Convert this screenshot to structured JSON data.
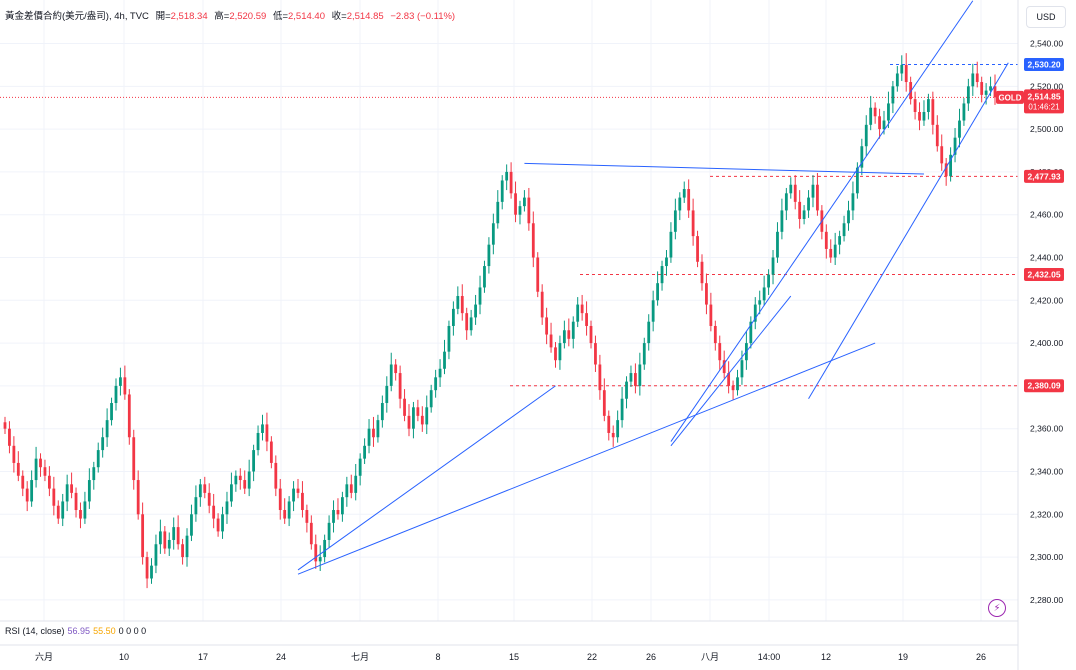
{
  "header": {
    "title": "黃金差價合約(美元/盎司), 4h, TVC",
    "open_label": "開=",
    "open": "2,518.34",
    "high_label": "高=",
    "high": "2,520.59",
    "low_label": "低=",
    "low": "2,514.40",
    "close_label": "收=",
    "close": "2,514.85",
    "change": "−2.83 (−0.11%)"
  },
  "currency_button": "USD",
  "price_axis": {
    "ticks": [
      "2,540.00",
      "2,520.00",
      "2,500.00",
      "2,480.00",
      "2,460.00",
      "2,440.00",
      "2,420.00",
      "2,400.00",
      "2,380.00",
      "2,360.00",
      "2,340.00",
      "2,320.00",
      "2,300.00",
      "2,280.00"
    ]
  },
  "price_labels": [
    {
      "value": "2,530.20",
      "color": "#2962ff"
    },
    {
      "value": "2,477.93",
      "color": "#f23645"
    },
    {
      "value": "2,432.05",
      "color": "#f23645"
    },
    {
      "value": "2,380.09",
      "color": "#f23645"
    }
  ],
  "last_price": {
    "symbol": "GOLD",
    "price": "2,514.85",
    "countdown": "01:46:21",
    "color": "#f23645"
  },
  "time_axis": {
    "labels": [
      "六月",
      "10",
      "17",
      "24",
      "七月",
      "8",
      "15",
      "22",
      "26",
      "八月",
      "14:00",
      "12",
      "19",
      "26"
    ]
  },
  "rsi": {
    "label": "RSI (14, close)",
    "v1": "56.95",
    "v2": "55.50",
    "rest": "0 0 0 0"
  },
  "colors": {
    "up": "#089981",
    "down": "#f23645",
    "trendline": "#2962ff",
    "grid": "#f0f3fa"
  },
  "chart_data": {
    "type": "candlestick",
    "title": "黃金差價合約(美元/盎司), 4h, TVC",
    "ylim": [
      2272,
      2558
    ],
    "grid": true,
    "closes": [
      2360,
      2352,
      2344,
      2338,
      2332,
      2326,
      2336,
      2346,
      2342,
      2338,
      2332,
      2324,
      2318,
      2326,
      2334,
      2330,
      2322,
      2318,
      2326,
      2336,
      2342,
      2350,
      2356,
      2364,
      2372,
      2380,
      2384,
      2376,
      2356,
      2336,
      2320,
      2300,
      2290,
      2296,
      2306,
      2312,
      2304,
      2308,
      2314,
      2306,
      2300,
      2310,
      2320,
      2328,
      2334,
      2330,
      2324,
      2318,
      2312,
      2320,
      2326,
      2334,
      2338,
      2336,
      2332,
      2340,
      2350,
      2358,
      2362,
      2354,
      2344,
      2332,
      2322,
      2318,
      2326,
      2332,
      2330,
      2322,
      2316,
      2306,
      2298,
      2300,
      2308,
      2316,
      2322,
      2320,
      2328,
      2334,
      2330,
      2338,
      2346,
      2352,
      2360,
      2356,
      2364,
      2372,
      2380,
      2390,
      2386,
      2374,
      2366,
      2360,
      2370,
      2366,
      2362,
      2370,
      2378,
      2384,
      2388,
      2396,
      2408,
      2416,
      2422,
      2414,
      2406,
      2412,
      2418,
      2426,
      2436,
      2446,
      2456,
      2466,
      2476,
      2480,
      2470,
      2460,
      2464,
      2468,
      2456,
      2440,
      2424,
      2412,
      2404,
      2398,
      2392,
      2400,
      2406,
      2402,
      2410,
      2418,
      2414,
      2408,
      2400,
      2390,
      2378,
      2366,
      2358,
      2356,
      2364,
      2374,
      2382,
      2386,
      2380,
      2390,
      2400,
      2410,
      2420,
      2428,
      2436,
      2440,
      2452,
      2462,
      2468,
      2472,
      2462,
      2450,
      2438,
      2428,
      2418,
      2408,
      2400,
      2392,
      2386,
      2380,
      2378,
      2384,
      2392,
      2400,
      2410,
      2418,
      2420,
      2426,
      2432,
      2440,
      2452,
      2462,
      2470,
      2474,
      2466,
      2458,
      2462,
      2468,
      2474,
      2462,
      2452,
      2444,
      2440,
      2446,
      2450,
      2456,
      2462,
      2470,
      2482,
      2492,
      2502,
      2510,
      2506,
      2500,
      2504,
      2512,
      2520,
      2526,
      2530,
      2522,
      2514,
      2508,
      2504,
      2508,
      2514,
      2502,
      2492,
      2484,
      2478,
      2488,
      2496,
      2504,
      2512,
      2520,
      2526,
      2522,
      2516,
      2518,
      2520,
      2514.85
    ],
    "levels": {
      "resistance_top": 2530.2,
      "level_1": 2477.93,
      "level_2": 2432.05,
      "level_3": 2380.09,
      "last_price": 2514.85
    }
  }
}
